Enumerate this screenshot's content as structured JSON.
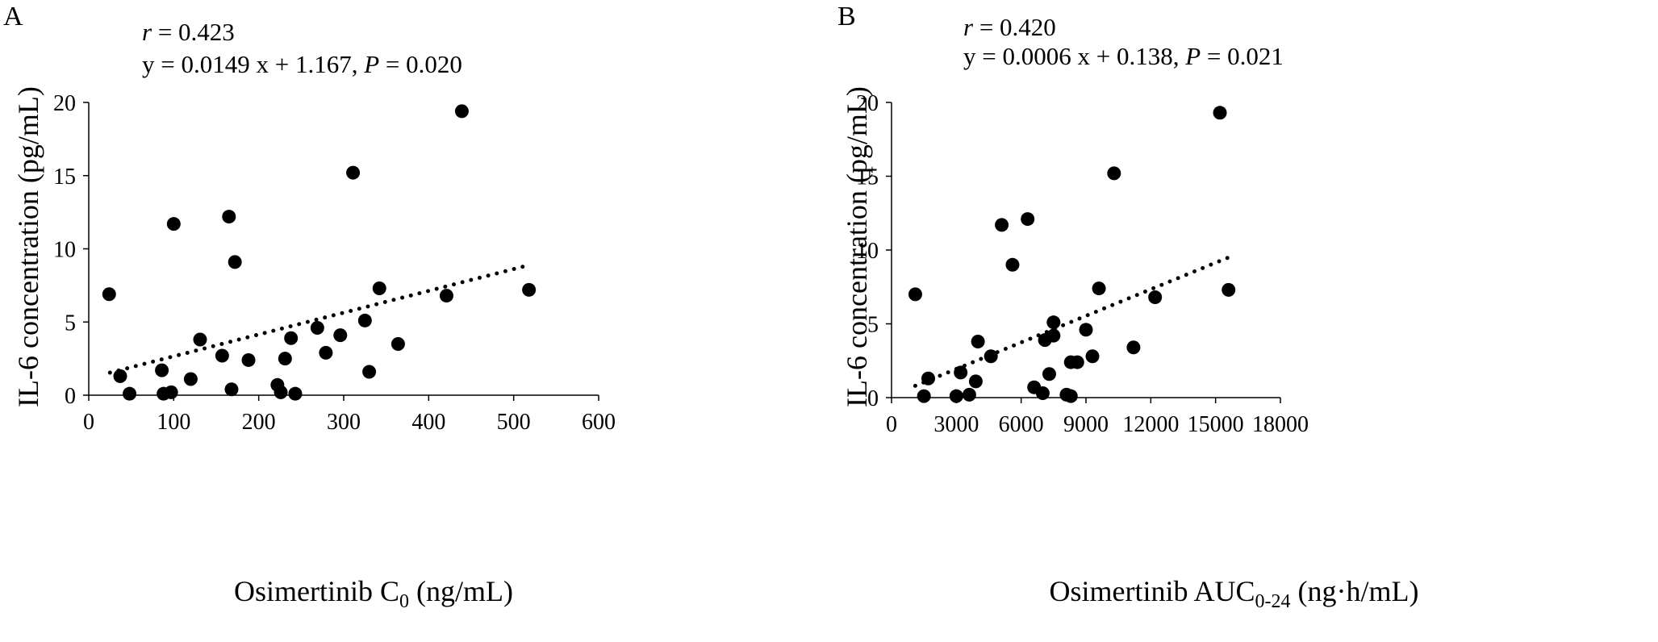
{
  "chart_data": [
    {
      "type": "scatter",
      "panel_label": "A",
      "stat": {
        "r_symbol": "r",
        "r_value": " = 0.423",
        "eq_text": "y = 0.0149 x + 1.167, ",
        "p_symbol": "P",
        "p_value": " = 0.020"
      },
      "xlabel_main": "Osimertinib C",
      "xlabel_sub": "0",
      "xlabel_tail": " (ng/mL)",
      "ylabel": "IL-6 concentration (pg/mL)",
      "xlim": [
        0,
        600
      ],
      "ylim": [
        0,
        20
      ],
      "xticks": [
        0,
        100,
        200,
        300,
        400,
        500,
        600
      ],
      "yticks": [
        0,
        5,
        10,
        15,
        20
      ],
      "trendline": {
        "style": "dotted",
        "slope": 0.0149,
        "intercept": 1.167,
        "x_range": [
          25,
          515
        ]
      },
      "points": [
        [
          24,
          6.9
        ],
        [
          37,
          1.3
        ],
        [
          48,
          0.1
        ],
        [
          86,
          1.7
        ],
        [
          88,
          0.1
        ],
        [
          97,
          0.2
        ],
        [
          100,
          11.7
        ],
        [
          120,
          1.1
        ],
        [
          131,
          3.8
        ],
        [
          157,
          2.7
        ],
        [
          165,
          12.2
        ],
        [
          168,
          0.4
        ],
        [
          172,
          9.1
        ],
        [
          188,
          2.4
        ],
        [
          222,
          0.7
        ],
        [
          226,
          0.2
        ],
        [
          231,
          2.5
        ],
        [
          238,
          3.9
        ],
        [
          243,
          0.1
        ],
        [
          269,
          4.6
        ],
        [
          279,
          2.9
        ],
        [
          296,
          4.1
        ],
        [
          311,
          15.2
        ],
        [
          325,
          5.1
        ],
        [
          330,
          1.6
        ],
        [
          342,
          7.3
        ],
        [
          364,
          3.5
        ],
        [
          421,
          6.8
        ],
        [
          439,
          19.4
        ],
        [
          518,
          7.2
        ]
      ]
    },
    {
      "type": "scatter",
      "panel_label": "B",
      "stat": {
        "r_symbol": "r",
        "r_value": " = 0.420",
        "eq_text": "y = 0.0006 x + 0.138, ",
        "p_symbol": "P",
        "p_value": " = 0.021"
      },
      "xlabel_main": "Osimertinib AUC",
      "xlabel_sub": "0-24",
      "xlabel_tail": " (ng·h/mL)",
      "ylabel": "IL-6 concentration (pg/mL)",
      "xlim": [
        0,
        18000
      ],
      "ylim": [
        0,
        20
      ],
      "xticks": [
        0,
        3000,
        6000,
        9000,
        12000,
        15000,
        18000
      ],
      "yticks": [
        0,
        5,
        10,
        15,
        20
      ],
      "trendline": {
        "style": "dotted",
        "slope": 0.0006,
        "intercept": 0.138,
        "x_range": [
          1100,
          15600
        ]
      },
      "points": [
        [
          1100,
          7.0
        ],
        [
          1500,
          0.1
        ],
        [
          1700,
          1.3
        ],
        [
          3000,
          0.1
        ],
        [
          3200,
          1.7
        ],
        [
          3600,
          0.2
        ],
        [
          3900,
          1.1
        ],
        [
          4000,
          3.8
        ],
        [
          4600,
          2.8
        ],
        [
          5100,
          11.7
        ],
        [
          5600,
          9.0
        ],
        [
          6300,
          12.1
        ],
        [
          6600,
          0.7
        ],
        [
          7000,
          0.3
        ],
        [
          7100,
          3.9
        ],
        [
          7300,
          1.6
        ],
        [
          7500,
          5.1
        ],
        [
          7500,
          4.2
        ],
        [
          8100,
          0.2
        ],
        [
          8300,
          0.1
        ],
        [
          8300,
          2.4
        ],
        [
          8600,
          2.4
        ],
        [
          9000,
          4.6
        ],
        [
          9300,
          2.8
        ],
        [
          9600,
          7.4
        ],
        [
          10300,
          15.2
        ],
        [
          11200,
          3.4
        ],
        [
          12200,
          6.8
        ],
        [
          15200,
          19.3
        ],
        [
          15600,
          7.3
        ]
      ]
    }
  ]
}
